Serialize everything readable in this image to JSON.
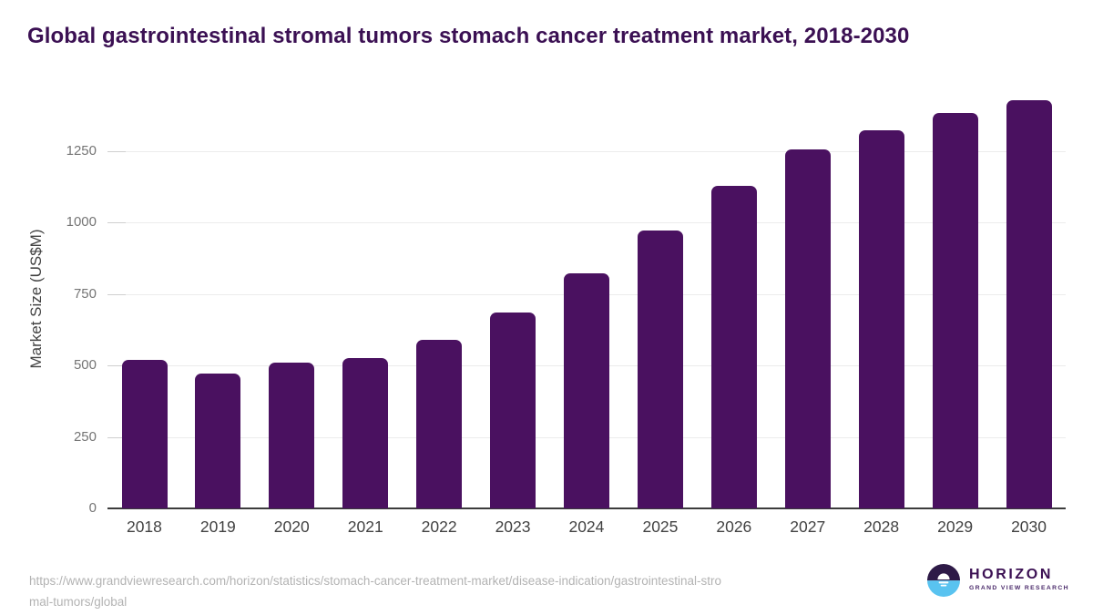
{
  "title": "Global gastrointestinal stromal tumors stomach cancer treatment market, 2018-2030",
  "chart_data": {
    "type": "bar",
    "categories": [
      "2018",
      "2019",
      "2020",
      "2021",
      "2022",
      "2023",
      "2024",
      "2025",
      "2026",
      "2027",
      "2028",
      "2029",
      "2030"
    ],
    "values": [
      519,
      473,
      509,
      527,
      590,
      686,
      822,
      973,
      1130,
      1255,
      1324,
      1384,
      1427
    ],
    "title": "Global gastrointestinal stromal tumors stomach cancer treatment market, 2018-2030",
    "xlabel": "",
    "ylabel": "Market Size (US$M)",
    "ylim": [
      0,
      1460
    ],
    "yticks": [
      0,
      250,
      500,
      750,
      1000,
      1250
    ],
    "grid": "horizontal",
    "legend": "none",
    "bar_color": "#4a1160"
  },
  "colors": {
    "title": "#3b1053",
    "bar": "#4a1160",
    "gridline": "#ececec",
    "axis_line": "#3c3c3c",
    "y_tick_label": "#757575",
    "x_tick_label": "#424242",
    "url_text": "#b3b3b3",
    "logo_dark": "#2e1a47",
    "logo_blue": "#59c3f0"
  },
  "footer": {
    "url_line1": "https://www.grandviewresearch.com/horizon/statistics/stomach-cancer-treatment-market/disease-indication/gastrointestinal-stro",
    "url_line2": "mal-tumors/global",
    "logo": {
      "name": "HORIZON",
      "subtitle": "GRAND VIEW RESEARCH"
    }
  }
}
